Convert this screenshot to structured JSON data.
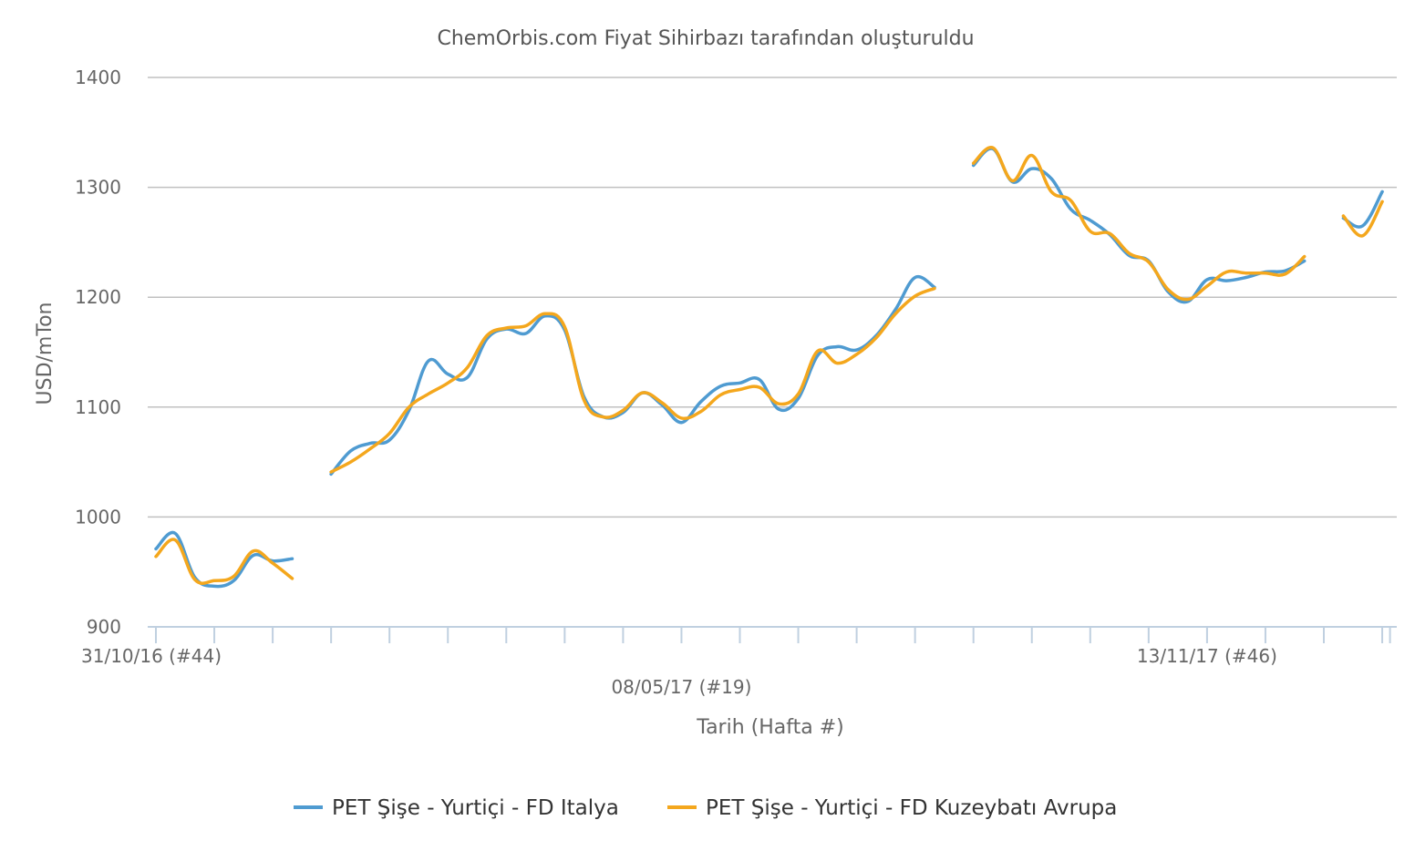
{
  "chart_data": {
    "type": "line",
    "title": "ChemOrbis.com Fiyat Sihirbazı tarafından oluşturuldu",
    "xlabel": "Tarih (Hafta #)",
    "ylabel": "USD/mTon",
    "ylim": [
      900,
      1400
    ],
    "yticks": [
      "900",
      "1000",
      "1100",
      "1200",
      "1300",
      "1400"
    ],
    "x_tick_labels": [
      {
        "label": "31/10/16 (#44)",
        "week": 0
      },
      {
        "label": "08/05/17 (#19)",
        "week": 27
      },
      {
        "label": "13/11/17 (#46)",
        "week": 54
      }
    ],
    "grid": true,
    "legend_position": "bottom",
    "series": [
      {
        "name": "PET Şişe - Yurtiçi - FD Italya",
        "color": "#4f9bd1",
        "segments": [
          [
            [
              0,
              971
            ],
            [
              1,
              985
            ],
            [
              2,
              945
            ],
            [
              3,
              937
            ],
            [
              4,
              942
            ],
            [
              5,
              965
            ],
            [
              6,
              960
            ],
            [
              7,
              962
            ]
          ],
          [
            [
              9,
              1039
            ],
            [
              10,
              1060
            ],
            [
              11,
              1067
            ],
            [
              12,
              1070
            ],
            [
              13,
              1097
            ],
            [
              14,
              1142
            ],
            [
              15,
              1130
            ],
            [
              16,
              1127
            ],
            [
              17,
              1162
            ],
            [
              18,
              1171
            ],
            [
              19,
              1167
            ],
            [
              20,
              1183
            ],
            [
              21,
              1170
            ],
            [
              22,
              1109
            ],
            [
              23,
              1091
            ],
            [
              24,
              1095
            ],
            [
              25,
              1113
            ],
            [
              26,
              1102
            ],
            [
              27,
              1086
            ],
            [
              28,
              1105
            ],
            [
              29,
              1119
            ],
            [
              30,
              1122
            ],
            [
              31,
              1125
            ],
            [
              32,
              1098
            ],
            [
              33,
              1108
            ],
            [
              34,
              1147
            ],
            [
              35,
              1155
            ],
            [
              36,
              1152
            ],
            [
              37,
              1165
            ],
            [
              38,
              1189
            ],
            [
              39,
              1218
            ],
            [
              40,
              1209
            ]
          ],
          [
            [
              42,
              1320
            ],
            [
              43,
              1335
            ],
            [
              44,
              1305
            ],
            [
              45,
              1317
            ],
            [
              46,
              1308
            ],
            [
              47,
              1280
            ],
            [
              48,
              1270
            ],
            [
              49,
              1257
            ],
            [
              50,
              1238
            ],
            [
              51,
              1233
            ],
            [
              52,
              1205
            ],
            [
              53,
              1196
            ],
            [
              54,
              1216
            ],
            [
              55,
              1215
            ],
            [
              56,
              1218
            ],
            [
              57,
              1223
            ],
            [
              58,
              1224
            ],
            [
              59,
              1233
            ]
          ],
          [
            [
              61,
              1272
            ],
            [
              62,
              1265
            ],
            [
              63,
              1296
            ]
          ]
        ]
      },
      {
        "name": "PET Şişe - Yurtiçi - FD Kuzeybatı Avrupa",
        "color": "#f4a71d",
        "segments": [
          [
            [
              0,
              964
            ],
            [
              1,
              979
            ],
            [
              2,
              943
            ],
            [
              3,
              942
            ],
            [
              4,
              946
            ],
            [
              5,
              969
            ],
            [
              6,
              958
            ],
            [
              7,
              944
            ]
          ],
          [
            [
              9,
              1041
            ],
            [
              10,
              1050
            ],
            [
              11,
              1062
            ],
            [
              12,
              1076
            ],
            [
              13,
              1100
            ],
            [
              14,
              1112
            ],
            [
              15,
              1122
            ],
            [
              16,
              1136
            ],
            [
              17,
              1165
            ],
            [
              18,
              1172
            ],
            [
              19,
              1174
            ],
            [
              20,
              1185
            ],
            [
              21,
              1173
            ],
            [
              22,
              1106
            ],
            [
              23,
              1091
            ],
            [
              24,
              1097
            ],
            [
              25,
              1113
            ],
            [
              26,
              1104
            ],
            [
              27,
              1090
            ],
            [
              28,
              1096
            ],
            [
              29,
              1111
            ],
            [
              30,
              1116
            ],
            [
              31,
              1118
            ],
            [
              32,
              1103
            ],
            [
              33,
              1112
            ],
            [
              34,
              1151
            ],
            [
              35,
              1140
            ],
            [
              36,
              1148
            ],
            [
              37,
              1163
            ],
            [
              38,
              1185
            ],
            [
              39,
              1201
            ],
            [
              40,
              1208
            ]
          ],
          [
            [
              42,
              1322
            ],
            [
              43,
              1336
            ],
            [
              44,
              1306
            ],
            [
              45,
              1329
            ],
            [
              46,
              1296
            ],
            [
              47,
              1288
            ],
            [
              48,
              1260
            ],
            [
              49,
              1258
            ],
            [
              50,
              1240
            ],
            [
              51,
              1232
            ],
            [
              52,
              1207
            ],
            [
              53,
              1198
            ],
            [
              54,
              1210
            ],
            [
              55,
              1223
            ],
            [
              56,
              1222
            ],
            [
              57,
              1222
            ],
            [
              58,
              1221
            ],
            [
              59,
              1237
            ]
          ],
          [
            [
              61,
              1274
            ],
            [
              62,
              1256
            ],
            [
              63,
              1287
            ]
          ]
        ]
      }
    ]
  }
}
